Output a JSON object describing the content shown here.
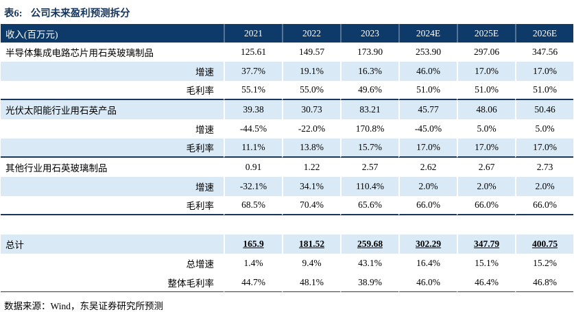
{
  "title": {
    "prefix": "表6:",
    "text": "公司未来盈利预测拆分"
  },
  "colors": {
    "header_bg": "#0d3a68",
    "stripe_bg": "#d9e9f6",
    "title_navy": "#17365d",
    "section_border": "#17365d"
  },
  "table": {
    "columns": [
      "收入(百万元)",
      "2021",
      "2022",
      "2023",
      "2024E",
      "2025E",
      "2026E"
    ],
    "rows": [
      {
        "label": "半导体集成电路芯片用石英玻璃制品",
        "sub": false,
        "stripe": false,
        "section_end": false,
        "spacer": false,
        "emphasis": false,
        "table_end": false,
        "values": [
          "125.61",
          "149.57",
          "173.90",
          "253.90",
          "297.06",
          "347.56"
        ]
      },
      {
        "label": "增速",
        "sub": true,
        "stripe": true,
        "section_end": false,
        "spacer": false,
        "emphasis": false,
        "table_end": false,
        "values": [
          "37.7%",
          "19.1%",
          "16.3%",
          "46.0%",
          "17.0%",
          "17.0%"
        ]
      },
      {
        "label": "毛利率",
        "sub": true,
        "stripe": false,
        "section_end": true,
        "spacer": false,
        "emphasis": false,
        "table_end": false,
        "values": [
          "55.1%",
          "55.0%",
          "49.6%",
          "51.0%",
          "51.0%",
          "51.0%"
        ]
      },
      {
        "label": "光伏太阳能行业用石英产品",
        "sub": false,
        "stripe": true,
        "section_end": false,
        "spacer": false,
        "emphasis": false,
        "table_end": false,
        "values": [
          "39.38",
          "30.73",
          "83.21",
          "45.77",
          "48.06",
          "50.46"
        ]
      },
      {
        "label": "增速",
        "sub": true,
        "stripe": false,
        "section_end": false,
        "spacer": false,
        "emphasis": false,
        "table_end": false,
        "values": [
          "-44.5%",
          "-22.0%",
          "170.8%",
          "-45.0%",
          "5.0%",
          "5.0%"
        ]
      },
      {
        "label": "毛利率",
        "sub": true,
        "stripe": true,
        "section_end": true,
        "spacer": false,
        "emphasis": false,
        "table_end": false,
        "values": [
          "11.1%",
          "13.8%",
          "15.7%",
          "17.0%",
          "17.0%",
          "17.0%"
        ]
      },
      {
        "label": "其他行业用石英玻璃制品",
        "sub": false,
        "stripe": false,
        "section_end": false,
        "spacer": false,
        "emphasis": false,
        "table_end": false,
        "values": [
          "0.91",
          "1.22",
          "2.57",
          "2.62",
          "2.67",
          "2.73"
        ]
      },
      {
        "label": "增速",
        "sub": true,
        "stripe": true,
        "section_end": false,
        "spacer": false,
        "emphasis": false,
        "table_end": false,
        "values": [
          "-32.1%",
          "34.1%",
          "110.4%",
          "2.0%",
          "2.0%",
          "2.0%"
        ]
      },
      {
        "label": "毛利率",
        "sub": true,
        "stripe": false,
        "section_end": true,
        "spacer": false,
        "emphasis": false,
        "table_end": false,
        "values": [
          "68.5%",
          "70.4%",
          "65.6%",
          "66.0%",
          "66.0%",
          "66.0%"
        ]
      },
      {
        "label": "",
        "sub": false,
        "stripe": false,
        "section_end": false,
        "spacer": true,
        "emphasis": false,
        "table_end": false,
        "values": [
          "",
          "",
          "",
          "",
          "",
          ""
        ]
      },
      {
        "label": "总计",
        "sub": false,
        "stripe": true,
        "section_end": false,
        "spacer": false,
        "emphasis": true,
        "table_end": false,
        "values": [
          "165.9",
          "181.52",
          "259.68",
          "302.29",
          "347.79",
          "400.75"
        ]
      },
      {
        "label": "总增速",
        "sub": true,
        "stripe": false,
        "section_end": false,
        "spacer": false,
        "emphasis": false,
        "table_end": false,
        "values": [
          "1.4%",
          "9.4%",
          "43.1%",
          "16.4%",
          "15.1%",
          "15.2%"
        ]
      },
      {
        "label": "整体毛利率",
        "sub": true,
        "stripe": false,
        "section_end": false,
        "spacer": false,
        "emphasis": false,
        "table_end": true,
        "values": [
          "44.7%",
          "48.1%",
          "38.9%",
          "46.0%",
          "46.4%",
          "46.8%"
        ]
      }
    ]
  },
  "footer": "数据来源：Wind，东吴证券研究所预测"
}
